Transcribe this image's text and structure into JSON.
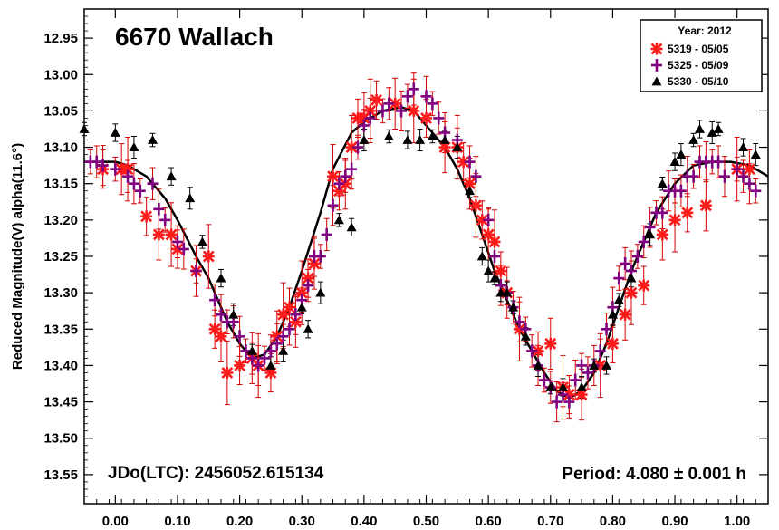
{
  "chart_data": {
    "type": "scatter",
    "title": "6670 Wallach",
    "xlabel": "",
    "ylabel": "Reduced Magnitude(V) alpha(11.6°)",
    "xlim": [
      -0.05,
      1.05
    ],
    "ylim": [
      12.91,
      13.59
    ],
    "y_inverted": true,
    "x_ticks": [
      0.0,
      0.1,
      0.2,
      0.3,
      0.4,
      0.5,
      0.6,
      0.7,
      0.8,
      0.9,
      1.0
    ],
    "x_tick_labels": [
      "0.00",
      "0.10",
      "0.20",
      "0.30",
      "0.40",
      "0.50",
      "0.60",
      "0.70",
      "0.80",
      "0.90",
      "1.00"
    ],
    "y_ticks": [
      12.95,
      13.0,
      13.05,
      13.1,
      13.15,
      13.2,
      13.25,
      13.3,
      13.35,
      13.4,
      13.45,
      13.5,
      13.55
    ],
    "y_tick_labels": [
      "12.95",
      "13.00",
      "13.05",
      "13.10",
      "13.15",
      "13.20",
      "13.25",
      "13.30",
      "13.35",
      "13.40",
      "13.45",
      "13.50",
      "13.55"
    ],
    "legend": {
      "title": "Year: 2012",
      "position": "top-right",
      "entries": [
        "5319 - 05/05",
        "5325 - 05/09",
        "5330 - 05/10"
      ]
    },
    "annotations": {
      "jd": "JDo(LTC): 2456052.615134",
      "period": "Period: 4.080 ± 0.001 h"
    },
    "colors": {
      "s5319": "#ff1a1a",
      "s5325": "#800080",
      "s5330": "#000000",
      "errbar": "#d40000",
      "curve": "#000000"
    },
    "fit_curve": {
      "description": "Fourier fit",
      "x": [
        -0.05,
        -0.02,
        0.0,
        0.02,
        0.05,
        0.08,
        0.1,
        0.13,
        0.15,
        0.18,
        0.2,
        0.22,
        0.24,
        0.26,
        0.28,
        0.3,
        0.33,
        0.35,
        0.38,
        0.4,
        0.43,
        0.46,
        0.48,
        0.5,
        0.53,
        0.55,
        0.57,
        0.59,
        0.61,
        0.63,
        0.65,
        0.67,
        0.69,
        0.71,
        0.73,
        0.75,
        0.77,
        0.79,
        0.81,
        0.83,
        0.85,
        0.87,
        0.9,
        0.93,
        0.96,
        0.99,
        1.02,
        1.05
      ],
      "y": [
        13.12,
        13.12,
        13.12,
        13.125,
        13.14,
        13.17,
        13.2,
        13.25,
        13.28,
        13.34,
        13.37,
        13.39,
        13.385,
        13.36,
        13.32,
        13.27,
        13.19,
        13.13,
        13.08,
        13.065,
        13.05,
        13.045,
        13.05,
        13.07,
        13.1,
        13.13,
        13.17,
        13.22,
        13.27,
        13.31,
        13.35,
        13.38,
        13.41,
        13.435,
        13.445,
        13.435,
        13.41,
        13.37,
        13.32,
        13.27,
        13.23,
        13.19,
        13.15,
        13.125,
        13.12,
        13.12,
        13.125,
        13.14
      ]
    },
    "series": [
      {
        "name": "5319 - 05/05",
        "marker": "star",
        "x": [
          -0.02,
          0.01,
          0.02,
          0.05,
          0.07,
          0.09,
          0.1,
          0.13,
          0.15,
          0.16,
          0.17,
          0.18,
          0.2,
          0.22,
          0.23,
          0.25,
          0.26,
          0.27,
          0.28,
          0.29,
          0.3,
          0.31,
          0.32,
          0.35,
          0.36,
          0.37,
          0.38,
          0.39,
          0.4,
          0.41,
          0.42,
          0.45,
          0.48,
          0.5,
          0.53,
          0.55,
          0.56,
          0.57,
          0.58,
          0.59,
          0.6,
          0.61,
          0.62,
          0.63,
          0.65,
          0.68,
          0.7,
          0.72,
          0.73,
          0.75,
          0.78,
          0.8,
          0.82,
          0.83,
          0.85,
          0.88,
          0.9,
          0.92,
          0.95,
          1.0,
          1.02
        ],
        "y": [
          13.13,
          13.13,
          13.13,
          13.195,
          13.22,
          13.22,
          13.24,
          13.27,
          13.25,
          13.35,
          13.36,
          13.41,
          13.4,
          13.39,
          13.4,
          13.41,
          13.36,
          13.33,
          13.32,
          13.34,
          13.3,
          13.28,
          13.26,
          13.14,
          13.16,
          13.15,
          13.1,
          13.06,
          13.06,
          13.05,
          13.035,
          13.04,
          13.05,
          13.06,
          13.1,
          13.1,
          13.12,
          13.15,
          13.18,
          13.2,
          13.22,
          13.23,
          13.27,
          13.3,
          13.35,
          13.38,
          13.37,
          13.43,
          13.44,
          13.44,
          13.4,
          13.37,
          13.33,
          13.3,
          13.29,
          13.22,
          13.2,
          13.19,
          13.18,
          13.13,
          13.13
        ]
      },
      {
        "name": "5325 - 05/09",
        "marker": "plus",
        "x": [
          -0.04,
          -0.03,
          -0.02,
          0.0,
          0.02,
          0.03,
          0.04,
          0.06,
          0.07,
          0.08,
          0.1,
          0.11,
          0.13,
          0.16,
          0.17,
          0.18,
          0.19,
          0.2,
          0.21,
          0.22,
          0.23,
          0.24,
          0.25,
          0.26,
          0.27,
          0.28,
          0.29,
          0.3,
          0.31,
          0.32,
          0.33,
          0.34,
          0.35,
          0.36,
          0.37,
          0.38,
          0.39,
          0.4,
          0.41,
          0.43,
          0.44,
          0.46,
          0.47,
          0.48,
          0.5,
          0.51,
          0.52,
          0.53,
          0.55,
          0.57,
          0.58,
          0.6,
          0.61,
          0.62,
          0.63,
          0.64,
          0.65,
          0.66,
          0.67,
          0.68,
          0.69,
          0.7,
          0.71,
          0.72,
          0.73,
          0.74,
          0.75,
          0.76,
          0.77,
          0.78,
          0.79,
          0.8,
          0.81,
          0.82,
          0.83,
          0.84,
          0.85,
          0.86,
          0.87,
          0.88,
          0.89,
          0.9,
          0.91,
          0.92,
          0.93,
          0.94,
          0.95,
          0.96,
          0.97,
          0.98,
          1.0,
          1.01,
          1.02,
          1.03
        ],
        "y": [
          13.12,
          13.12,
          13.125,
          13.13,
          13.14,
          13.15,
          13.16,
          13.15,
          13.185,
          13.2,
          13.23,
          13.24,
          13.27,
          13.31,
          13.33,
          13.34,
          13.34,
          13.36,
          13.38,
          13.39,
          13.4,
          13.39,
          13.38,
          13.37,
          13.36,
          13.35,
          13.33,
          13.31,
          13.29,
          13.25,
          13.25,
          13.22,
          13.18,
          13.15,
          13.14,
          13.13,
          13.1,
          13.07,
          13.06,
          13.05,
          13.04,
          13.05,
          13.03,
          13.02,
          13.03,
          13.04,
          13.06,
          13.08,
          13.09,
          13.12,
          13.14,
          13.2,
          13.25,
          13.29,
          13.3,
          13.32,
          13.34,
          13.35,
          13.38,
          13.4,
          13.42,
          13.43,
          13.45,
          13.44,
          13.45,
          13.42,
          13.4,
          13.41,
          13.4,
          13.38,
          13.35,
          13.32,
          13.28,
          13.26,
          13.27,
          13.25,
          13.23,
          13.21,
          13.19,
          13.19,
          13.16,
          13.16,
          13.16,
          13.14,
          13.14,
          13.12,
          13.12,
          13.12,
          13.12,
          13.14,
          13.13,
          13.14,
          13.15,
          13.16
        ]
      },
      {
        "name": "5330 - 05/10",
        "marker": "triangle",
        "x": [
          -0.05,
          0.0,
          0.03,
          0.06,
          0.09,
          0.12,
          0.14,
          0.17,
          0.19,
          0.22,
          0.25,
          0.27,
          0.3,
          0.31,
          0.33,
          0.36,
          0.38,
          0.4,
          0.44,
          0.47,
          0.49,
          0.51,
          0.53,
          0.55,
          0.57,
          0.59,
          0.6,
          0.61,
          0.62,
          0.63,
          0.64,
          0.66,
          0.68,
          0.7,
          0.72,
          0.75,
          0.77,
          0.79,
          0.8,
          0.81,
          0.83,
          0.86,
          0.88,
          0.9,
          0.91,
          0.93,
          0.94,
          0.96,
          0.97,
          1.01,
          1.03
        ],
        "y": [
          13.075,
          13.08,
          13.1,
          13.09,
          13.14,
          13.17,
          13.23,
          13.28,
          13.33,
          13.38,
          13.4,
          13.38,
          13.32,
          13.35,
          13.3,
          13.2,
          13.21,
          13.09,
          13.085,
          13.09,
          13.09,
          13.085,
          13.09,
          13.1,
          13.16,
          13.25,
          13.27,
          13.28,
          13.3,
          13.3,
          13.32,
          13.36,
          13.4,
          13.43,
          13.43,
          13.43,
          13.4,
          13.4,
          13.33,
          13.31,
          13.28,
          13.22,
          13.15,
          13.12,
          13.11,
          13.09,
          13.075,
          13.08,
          13.075,
          13.1,
          13.11
        ]
      }
    ]
  }
}
